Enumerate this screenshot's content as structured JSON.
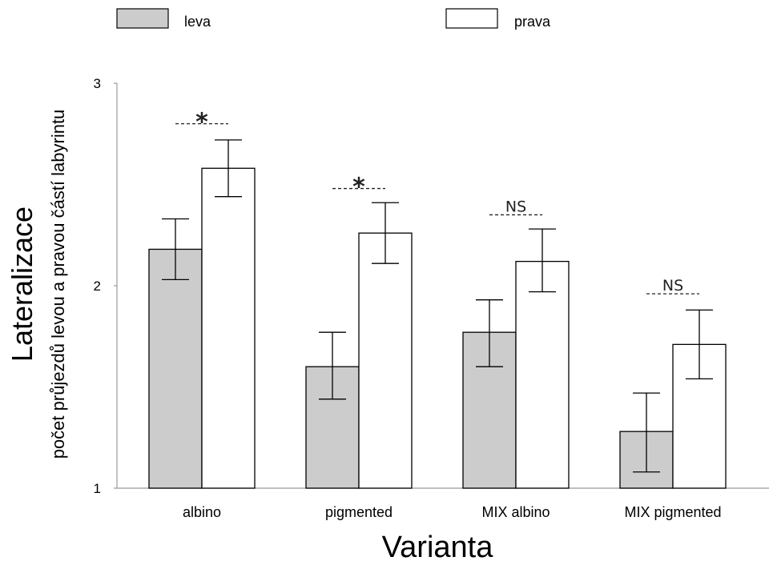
{
  "chart_data": {
    "type": "bar",
    "title": "",
    "xlabel": "Varianta",
    "ylabel": "Lateralizace",
    "ylabel_sub": "počet průjezdů levou a pravou částí labyrintu",
    "categories": [
      "albino",
      "pigmented",
      "MIX albino",
      "MIX pigmented"
    ],
    "ylim": [
      1,
      3
    ],
    "yticks": [
      "1",
      "2",
      "3"
    ],
    "grid": false,
    "legend_position": "top",
    "series": [
      {
        "name": "leva",
        "color": "#cccccc",
        "values": [
          2.18,
          1.6,
          1.77,
          1.28
        ],
        "err_low": [
          2.03,
          1.44,
          1.6,
          1.08
        ],
        "err_high": [
          2.33,
          1.77,
          1.93,
          1.47
        ]
      },
      {
        "name": "prava",
        "color": "#ffffff",
        "values": [
          2.58,
          2.26,
          2.12,
          1.71
        ],
        "err_low": [
          2.44,
          2.11,
          1.97,
          1.54
        ],
        "err_high": [
          2.72,
          2.41,
          2.28,
          1.88
        ]
      }
    ],
    "annotations": [
      {
        "category": "albino",
        "label": "*",
        "y": 2.8
      },
      {
        "category": "pigmented",
        "label": "*",
        "y": 2.48
      },
      {
        "category": "MIX albino",
        "label": "NS",
        "y": 2.35
      },
      {
        "category": "MIX pigmented",
        "label": "NS",
        "y": 1.96
      }
    ]
  }
}
